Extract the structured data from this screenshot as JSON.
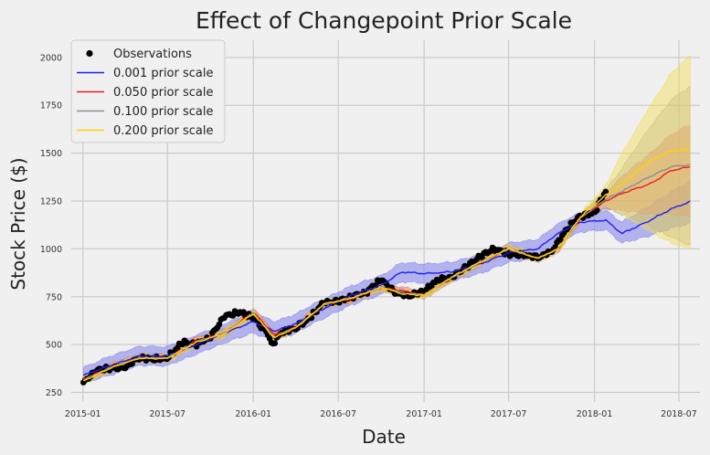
{
  "chart_data": {
    "type": "line",
    "title": "Effect of Changepoint Prior Scale",
    "xlabel": "Date",
    "ylabel": "Stock Price ($)",
    "xlim": [
      "2014-12-07",
      "2018-08-15"
    ],
    "ylim": [
      200,
      2090
    ],
    "x_ticks": [
      "2015-01",
      "2015-07",
      "2016-01",
      "2016-07",
      "2017-01",
      "2017-07",
      "2018-01",
      "2018-07"
    ],
    "y_ticks": [
      250,
      500,
      750,
      1000,
      1250,
      1500,
      1750,
      2000
    ],
    "grid": true,
    "legend_position": "top-left",
    "observations": {
      "name": "Observations",
      "color": "#000000",
      "end_date": "2018-01-25",
      "dates": [
        "2015-01-02",
        "2015-02-01",
        "2015-03-01",
        "2015-04-01",
        "2015-05-01",
        "2015-06-01",
        "2015-07-01",
        "2015-08-01",
        "2015-09-01",
        "2015-10-01",
        "2015-11-01",
        "2015-12-01",
        "2016-01-01",
        "2016-02-01",
        "2016-02-10",
        "2016-03-01",
        "2016-04-01",
        "2016-05-01",
        "2016-06-01",
        "2016-07-01",
        "2016-08-01",
        "2016-09-01",
        "2016-10-01",
        "2016-11-01",
        "2016-12-01",
        "2017-01-01",
        "2017-02-01",
        "2017-03-01",
        "2017-04-01",
        "2017-05-01",
        "2017-06-01",
        "2017-07-01",
        "2017-08-01",
        "2017-09-01",
        "2017-10-01",
        "2017-11-01",
        "2017-12-01",
        "2018-01-01",
        "2018-01-25"
      ],
      "values": [
        300,
        370,
        375,
        380,
        430,
        425,
        430,
        510,
        500,
        540,
        650,
        670,
        640,
        560,
        495,
        565,
        585,
        640,
        720,
        725,
        750,
        775,
        840,
        770,
        755,
        780,
        840,
        850,
        905,
        960,
        1000,
        975,
        970,
        955,
        985,
        1100,
        1170,
        1190,
        1300
      ]
    },
    "series": [
      {
        "name": "0.001 prior scale",
        "color": "#1e1ef0",
        "band_color": "#8080ee",
        "dates": [
          "2015-01-02",
          "2015-03-01",
          "2015-05-01",
          "2015-07-01",
          "2015-09-01",
          "2015-11-01",
          "2016-01-01",
          "2016-02-15",
          "2016-04-01",
          "2016-06-01",
          "2016-08-01",
          "2016-10-01",
          "2016-11-15",
          "2017-01-01",
          "2017-03-01",
          "2017-05-01",
          "2017-07-01",
          "2017-09-01",
          "2017-10-15",
          "2017-12-01",
          "2018-01-25",
          "2018-03-01",
          "2018-05-01",
          "2018-06-15",
          "2018-07-25"
        ],
        "values": [
          340,
          390,
          440,
          440,
          500,
          560,
          620,
          570,
          610,
          690,
          760,
          810,
          880,
          870,
          880,
          920,
          980,
          1000,
          1080,
          1140,
          1150,
          1080,
          1150,
          1210,
          1245
        ],
        "lower": [
          300,
          340,
          390,
          390,
          450,
          510,
          560,
          520,
          560,
          640,
          710,
          760,
          830,
          820,
          830,
          870,
          930,
          950,
          1030,
          1090,
          1100,
          1030,
          1070,
          1110,
          1130
        ],
        "upper": [
          380,
          440,
          490,
          490,
          550,
          610,
          670,
          620,
          660,
          740,
          810,
          860,
          930,
          920,
          930,
          970,
          1030,
          1050,
          1130,
          1190,
          1200,
          1140,
          1230,
          1300,
          1350
        ]
      },
      {
        "name": "0.050 prior scale",
        "color": "#ee1c1c",
        "band_color": "#ee7070",
        "dates": [
          "2015-01-02",
          "2015-03-01",
          "2015-05-01",
          "2015-07-01",
          "2015-09-01",
          "2015-11-01",
          "2016-01-01",
          "2016-02-15",
          "2016-04-01",
          "2016-06-01",
          "2016-08-01",
          "2016-10-01",
          "2016-11-15",
          "2017-01-01",
          "2017-03-01",
          "2017-05-01",
          "2017-07-01",
          "2017-09-01",
          "2017-10-15",
          "2017-12-01",
          "2018-01-25",
          "2018-03-01",
          "2018-05-01",
          "2018-06-15",
          "2018-07-25"
        ],
        "values": [
          320,
          380,
          430,
          430,
          520,
          560,
          670,
          550,
          590,
          710,
          740,
          800,
          780,
          760,
          850,
          930,
          1000,
          950,
          1000,
          1160,
          1250,
          1290,
          1340,
          1410,
          1430
        ],
        "lower": [
          300,
          360,
          410,
          410,
          500,
          540,
          650,
          530,
          570,
          690,
          720,
          780,
          760,
          740,
          830,
          910,
          980,
          930,
          980,
          1140,
          1210,
          1200,
          1180,
          1180,
          1170
        ],
        "upper": [
          340,
          400,
          450,
          450,
          540,
          580,
          690,
          570,
          610,
          730,
          760,
          820,
          800,
          780,
          870,
          950,
          1020,
          970,
          1020,
          1180,
          1290,
          1380,
          1500,
          1600,
          1650
        ]
      },
      {
        "name": "0.100 prior scale",
        "color": "#8c8c8c",
        "band_color": "#a0a0a0",
        "dates": [
          "2015-01-02",
          "2015-03-01",
          "2015-05-01",
          "2015-07-01",
          "2015-09-01",
          "2015-11-01",
          "2016-01-01",
          "2016-02-15",
          "2016-04-01",
          "2016-06-01",
          "2016-08-01",
          "2016-10-01",
          "2016-11-15",
          "2017-01-01",
          "2017-03-01",
          "2017-05-01",
          "2017-07-01",
          "2017-09-01",
          "2017-10-15",
          "2017-12-01",
          "2018-01-25",
          "2018-03-01",
          "2018-05-01",
          "2018-06-15",
          "2018-07-25"
        ],
        "values": [
          315,
          380,
          430,
          430,
          515,
          560,
          665,
          540,
          590,
          710,
          745,
          800,
          770,
          760,
          850,
          930,
          1000,
          950,
          1000,
          1160,
          1260,
          1300,
          1380,
          1430,
          1440
        ],
        "lower": [
          295,
          360,
          410,
          410,
          495,
          540,
          645,
          520,
          570,
          690,
          725,
          780,
          750,
          740,
          830,
          910,
          980,
          930,
          980,
          1140,
          1215,
          1180,
          1120,
          1060,
          1020
        ],
        "upper": [
          335,
          400,
          450,
          450,
          535,
          580,
          685,
          560,
          610,
          730,
          765,
          820,
          790,
          780,
          870,
          950,
          1020,
          970,
          1020,
          1180,
          1305,
          1420,
          1640,
          1780,
          1850
        ]
      },
      {
        "name": "0.200 prior scale",
        "color": "#ffd200",
        "band_color": "#f0dc50",
        "dates": [
          "2015-01-02",
          "2015-03-01",
          "2015-05-01",
          "2015-07-01",
          "2015-09-01",
          "2015-11-01",
          "2016-01-01",
          "2016-02-15",
          "2016-04-01",
          "2016-06-01",
          "2016-08-01",
          "2016-10-01",
          "2016-11-15",
          "2017-01-01",
          "2017-03-01",
          "2017-05-01",
          "2017-07-01",
          "2017-09-01",
          "2017-10-15",
          "2017-12-01",
          "2018-01-25",
          "2018-03-01",
          "2018-05-01",
          "2018-06-15",
          "2018-07-25"
        ],
        "values": [
          310,
          378,
          428,
          428,
          512,
          558,
          662,
          535,
          588,
          712,
          745,
          800,
          765,
          758,
          852,
          932,
          1002,
          950,
          1000,
          1165,
          1280,
          1340,
          1460,
          1510,
          1520
        ],
        "lower": [
          290,
          358,
          408,
          408,
          492,
          538,
          642,
          515,
          568,
          692,
          725,
          780,
          745,
          738,
          832,
          912,
          982,
          930,
          980,
          1145,
          1230,
          1180,
          1090,
          1030,
          1000
        ],
        "upper": [
          330,
          398,
          448,
          448,
          532,
          578,
          682,
          555,
          608,
          732,
          765,
          820,
          785,
          778,
          872,
          952,
          1022,
          970,
          1020,
          1185,
          1330,
          1500,
          1750,
          1920,
          2010
        ]
      }
    ]
  }
}
